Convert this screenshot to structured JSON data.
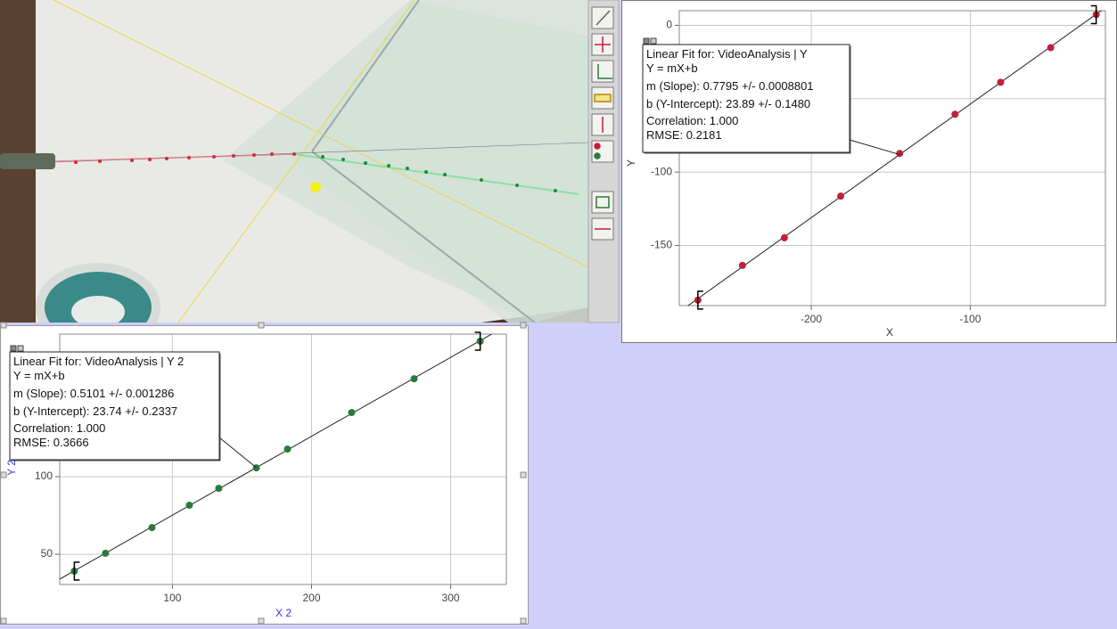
{
  "chart_data": [
    {
      "type": "scatter",
      "xlabel": "X",
      "ylabel": "Y",
      "color": "#c0203a",
      "x": [
        -271.3,
        -243.3,
        -216.9,
        -181.5,
        -144.4,
        -109.6,
        -80.9,
        -49.4,
        -20.8
      ],
      "values": [
        -187.3,
        -163.6,
        -144.8,
        -116.4,
        -87.3,
        -60.6,
        -38.8,
        -15.2,
        7.3
      ],
      "xlim": [
        -283,
        -15
      ],
      "ylim": [
        -191,
        10
      ],
      "xticks": [
        -200,
        -100
      ],
      "yticks": [
        -150,
        -100,
        -50,
        0
      ],
      "grid": true,
      "fit_box": [
        "Linear Fit for: VideoAnalysis | Y",
        "Y = mX+b",
        "m (Slope): 0.7795 +/- 0.0008801",
        "b (Y-Intercept): 23.89 +/- 0.1480",
        "Correlation: 1.000",
        "RMSE: 0.2181"
      ]
    },
    {
      "type": "scatter",
      "xlabel": "X 2",
      "ylabel": "Y 2",
      "color": "#2a7a3a",
      "x": [
        29.5,
        51.9,
        85.3,
        112.2,
        133.3,
        160.3,
        182.7,
        228.8,
        273.7,
        321.2
      ],
      "values": [
        39.1,
        50.6,
        67.2,
        81.6,
        92.5,
        105.7,
        117.8,
        141.4,
        163.2,
        187.4
      ],
      "xlim": [
        19,
        340
      ],
      "ylim": [
        30.5,
        192
      ],
      "xticks": [
        100,
        200,
        300
      ],
      "yticks": [
        50,
        100
      ],
      "grid": true,
      "fit_box": [
        "Linear Fit for: VideoAnalysis | Y 2",
        "Y = mX+b",
        "m (Slope): 0.5101 +/- 0.001286",
        "b (Y-Intercept): 23.74 +/- 0.2337",
        "Correlation: 1.000",
        "RMSE: 0.3666"
      ]
    }
  ]
}
